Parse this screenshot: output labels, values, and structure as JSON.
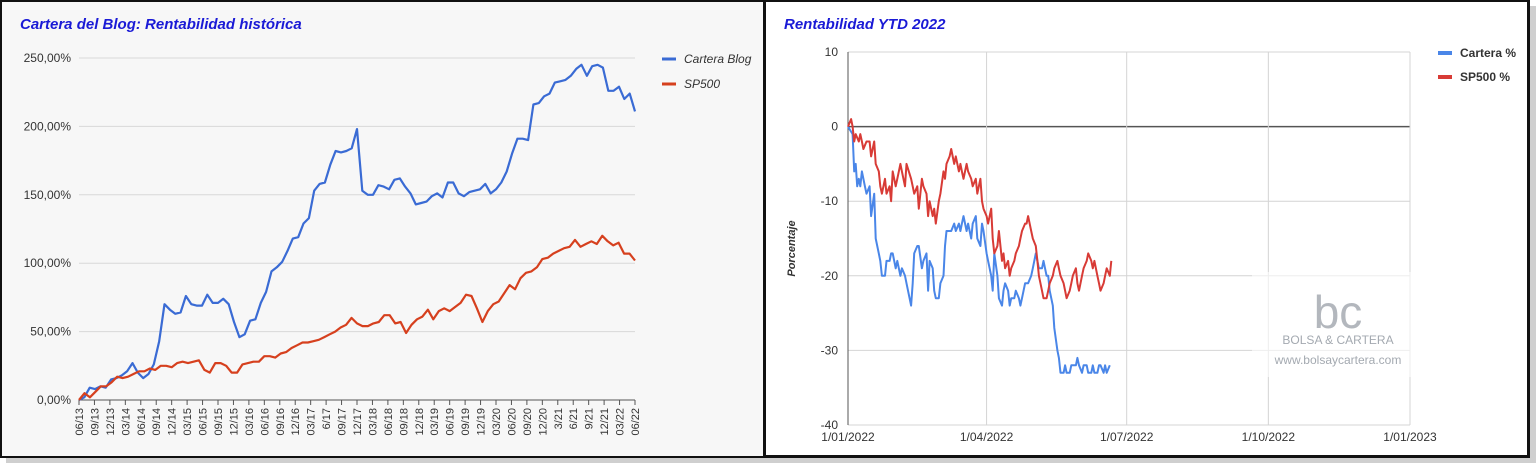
{
  "colors": {
    "cartera_blog": "#3a6bd4",
    "sp500": "#d6401e",
    "cartera_ytd": "#4a86e8",
    "sp500_ytd": "#d83b36",
    "title": "#1a1ad6"
  },
  "watermark": {
    "logo": "bc",
    "line1": "BOLSA & CARTERA",
    "line2": "www.bolsaycartera.com"
  },
  "chart_data": [
    {
      "type": "line",
      "title": "Cartera del Blog: Rentabilidad histórica",
      "xlabel": "",
      "ylabel": "",
      "ylim": [
        0,
        250
      ],
      "yticks": [
        "0,00%",
        "50,00%",
        "100,00%",
        "150,00%",
        "200,00%",
        "250,00%"
      ],
      "yticks_values": [
        0,
        50,
        100,
        150,
        200,
        250
      ],
      "x_tick_labels": [
        "06/13",
        "09/13",
        "12/13",
        "03/14",
        "06/14",
        "09/14",
        "12/14",
        "03/15",
        "06/15",
        "09/15",
        "12/15",
        "03/16",
        "06/16",
        "09/16",
        "12/16",
        "03/17",
        "6/17",
        "09/17",
        "12/17",
        "03/18",
        "06/18",
        "09/18",
        "12/18",
        "03/19",
        "06/19",
        "09/19",
        "12/19",
        "03/20",
        "06/20",
        "09/20",
        "12/20",
        "3/21",
        "6/21",
        "9/21",
        "12/21",
        "03/22",
        "06/22"
      ],
      "grid": true,
      "legend_position": "top-right",
      "series": [
        {
          "name": "Cartera Blog",
          "values": [
            0,
            2,
            9,
            8,
            10,
            9,
            15,
            16,
            18,
            21,
            27,
            20,
            16,
            19,
            26,
            43,
            70,
            66,
            63,
            64,
            76,
            70,
            69,
            69,
            77,
            71,
            71,
            74,
            70,
            57,
            46,
            48,
            58,
            59,
            71,
            79,
            94,
            97,
            101,
            109,
            118,
            119,
            129,
            133,
            153,
            158,
            159,
            172,
            182,
            181,
            182,
            184,
            198,
            153,
            150,
            150,
            157,
            156,
            154,
            161,
            162,
            156,
            151,
            143,
            144,
            145,
            149,
            151,
            148,
            159,
            159,
            151,
            149,
            152,
            153,
            154,
            158,
            151,
            154,
            159,
            167,
            180,
            191,
            191,
            190,
            216,
            217,
            222,
            224,
            232,
            233,
            234,
            237,
            242,
            245,
            237,
            244,
            245,
            243,
            226,
            226,
            229,
            220,
            224,
            211
          ]
        },
        {
          "name": "SP500",
          "values": [
            0,
            5,
            2,
            6,
            10,
            10,
            13,
            17,
            16,
            17,
            19,
            21,
            21,
            23,
            22,
            25,
            25,
            24,
            27,
            28,
            27,
            28,
            29,
            22,
            20,
            27,
            27,
            25,
            20,
            20,
            26,
            27,
            28,
            28,
            32,
            32,
            31,
            34,
            35,
            38,
            40,
            42,
            42,
            43,
            44,
            46,
            48,
            50,
            53,
            55,
            60,
            56,
            54,
            54,
            56,
            57,
            62,
            62,
            56,
            57,
            49,
            55,
            59,
            61,
            66,
            59,
            65,
            67,
            65,
            68,
            71,
            77,
            76,
            67,
            57,
            65,
            70,
            72,
            78,
            84,
            81,
            89,
            93,
            94,
            97,
            103,
            104,
            107,
            109,
            111,
            112,
            117,
            112,
            114,
            116,
            114,
            120,
            116,
            113,
            115,
            107,
            107,
            102
          ]
        }
      ]
    },
    {
      "type": "line",
      "title": "Rentabilidad YTD 2022",
      "xlabel": "",
      "ylabel": "Porcentaje",
      "ylim": [
        -40,
        10
      ],
      "yticks": [
        "10",
        "0",
        "-10",
        "-20",
        "-30",
        "-40"
      ],
      "yticks_values": [
        10,
        0,
        -10,
        -20,
        -30,
        -40
      ],
      "x_tick_labels": [
        "1/01/2022",
        "1/04/2022",
        "1/07/2022",
        "1/10/2022",
        "1/01/2023"
      ],
      "x_tick_days": [
        0,
        90,
        181,
        273,
        365
      ],
      "xlim_days": [
        0,
        365
      ],
      "grid": true,
      "legend_position": "top-right",
      "series": [
        {
          "name": "Cartera %",
          "days": [
            0,
            3,
            4,
            5,
            6,
            7,
            8,
            9,
            10,
            11,
            12,
            14,
            15,
            17,
            18,
            20,
            21,
            22,
            24,
            25,
            27,
            28,
            29,
            31,
            32,
            34,
            35,
            37,
            38,
            41,
            42,
            43,
            45,
            46,
            48,
            49,
            51,
            52,
            53,
            55,
            56,
            57,
            59,
            60,
            62,
            63,
            64,
            66,
            67,
            69,
            70,
            72,
            73,
            74,
            75,
            77,
            78,
            80,
            81,
            83,
            84,
            86,
            87,
            88,
            90,
            91,
            93,
            94,
            95,
            97,
            98,
            100,
            101,
            102,
            104,
            105,
            106,
            108,
            109,
            111,
            112,
            113,
            115,
            116,
            117,
            119,
            120,
            122,
            123,
            124,
            126,
            127,
            129,
            130,
            131,
            133,
            134,
            136,
            137,
            138,
            140,
            141,
            142,
            144,
            145,
            146,
            148,
            149,
            150,
            152,
            153,
            155,
            156,
            158,
            159,
            160,
            162,
            163,
            164,
            166,
            167,
            168,
            170
          ],
          "values": [
            0,
            -1,
            -6,
            -5,
            -8,
            -7,
            -8,
            -6,
            -7,
            -8,
            -9,
            -8,
            -12,
            -9,
            -15,
            -17,
            -18,
            -20,
            -20,
            -18,
            -18,
            -17,
            -17,
            -19,
            -18,
            -20,
            -19,
            -20,
            -21,
            -24,
            -21,
            -17,
            -16,
            -16,
            -19,
            -18,
            -17,
            -22,
            -18,
            -19,
            -22,
            -23,
            -23,
            -21,
            -20,
            -16,
            -14,
            -14,
            -14,
            -13,
            -14,
            -13,
            -14,
            -13,
            -12,
            -14,
            -13,
            -15,
            -13,
            -12,
            -15,
            -16,
            -13,
            -14,
            -17,
            -18,
            -20,
            -22,
            -17,
            -20,
            -23,
            -24,
            -22,
            -21,
            -22,
            -24,
            -23,
            -23,
            -22,
            -23,
            -24,
            -23,
            -21,
            -21,
            -21,
            -20,
            -19,
            -17,
            -18,
            -19,
            -19,
            -18,
            -20,
            -20,
            -22,
            -24,
            -27,
            -30,
            -31,
            -33,
            -33,
            -32,
            -33,
            -33,
            -32,
            -32,
            -32,
            -31,
            -32,
            -33,
            -32,
            -32,
            -33,
            -33,
            -32,
            -33,
            -33,
            -32,
            -32,
            -33,
            -32,
            -33,
            -32
          ],
          "truncate_at_day": 171
        },
        {
          "name": "SP500 %",
          "days": [
            0,
            2,
            3,
            4,
            5,
            7,
            8,
            9,
            10,
            12,
            14,
            15,
            17,
            18,
            20,
            21,
            22,
            24,
            25,
            27,
            28,
            29,
            31,
            32,
            34,
            35,
            37,
            38,
            41,
            42,
            43,
            45,
            46,
            48,
            49,
            51,
            52,
            53,
            55,
            56,
            57,
            59,
            60,
            62,
            63,
            64,
            66,
            67,
            69,
            70,
            72,
            73,
            74,
            75,
            77,
            78,
            80,
            81,
            83,
            84,
            86,
            87,
            88,
            90,
            91,
            93,
            94,
            95,
            97,
            98,
            100,
            101,
            102,
            104,
            105,
            106,
            108,
            109,
            111,
            112,
            113,
            115,
            116,
            117,
            119,
            120,
            122,
            123,
            124,
            126,
            127,
            129,
            130,
            131,
            133,
            134,
            136,
            137,
            138,
            140,
            141,
            142,
            144,
            145,
            146,
            148,
            149,
            150,
            152,
            153,
            155,
            156,
            158,
            159,
            160,
            162,
            163,
            164,
            166,
            167,
            168,
            170,
            171
          ],
          "values": [
            0,
            1,
            0,
            -2,
            -1,
            -2,
            -1,
            -2,
            -3,
            -2,
            -2,
            -4,
            -2,
            -5,
            -6,
            -8,
            -9,
            -7,
            -9,
            -8,
            -10,
            -6,
            -8,
            -7,
            -5,
            -6,
            -8,
            -5,
            -7,
            -8,
            -9,
            -8,
            -11,
            -7,
            -8,
            -9,
            -12,
            -10,
            -12,
            -11,
            -13,
            -10,
            -9,
            -6,
            -7,
            -5,
            -4,
            -3,
            -5,
            -4,
            -6,
            -5,
            -6,
            -7,
            -5,
            -6,
            -7,
            -8,
            -7,
            -9,
            -7,
            -10,
            -11,
            -12,
            -13,
            -11,
            -15,
            -17,
            -16,
            -14,
            -18,
            -17,
            -19,
            -18,
            -20,
            -19,
            -18,
            -17,
            -16,
            -15,
            -14,
            -13,
            -13,
            -12,
            -14,
            -15,
            -16,
            -18,
            -20,
            -22,
            -23,
            -23,
            -22,
            -21,
            -20,
            -19,
            -18,
            -19,
            -20,
            -21,
            -22,
            -23,
            -22,
            -21,
            -20,
            -19,
            -21,
            -22,
            -20,
            -19,
            -18,
            -17,
            -18,
            -19,
            -18,
            -20,
            -21,
            -22,
            -21,
            -20,
            -19,
            -20,
            -18
          ],
          "truncate_at_day": 171
        }
      ]
    }
  ]
}
